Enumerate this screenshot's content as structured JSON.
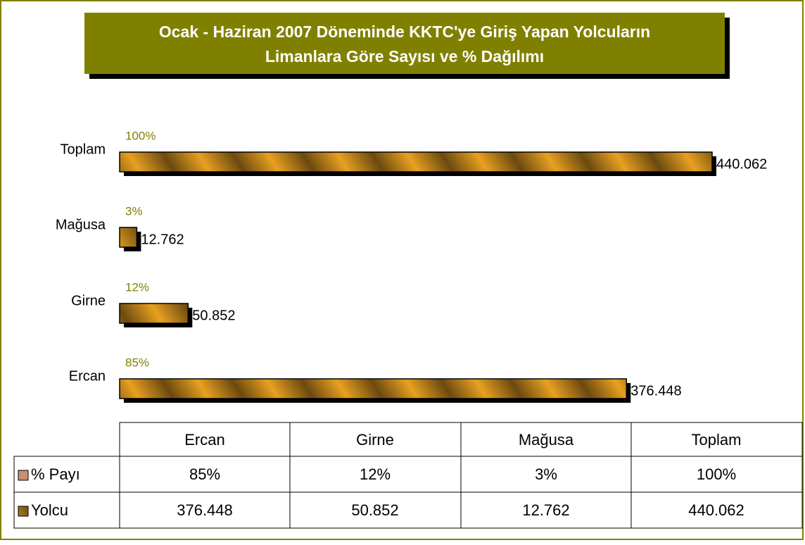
{
  "chart_data": {
    "type": "bar",
    "orientation": "horizontal",
    "title": "Ocak - Haziran 2007 Döneminde KKTC'ye Giriş Yapan Yolcuların",
    "subtitle": "Limanlara Göre Sayısı ve % Dağılımı",
    "categories": [
      "Ercan",
      "Girne",
      "Mağusa",
      "Toplam"
    ],
    "series": [
      {
        "name": "% Payı",
        "color": "#c89070",
        "values": [
          85,
          12,
          3,
          100
        ],
        "value_labels": [
          "85%",
          "12%",
          "3%",
          "100%"
        ]
      },
      {
        "name": "Yolcu",
        "color": "#e8a020",
        "values": [
          376448,
          50852,
          12762,
          440062
        ],
        "value_labels": [
          "376.448",
          "50.852",
          "12.762",
          "440.062"
        ]
      }
    ],
    "xlim": [
      0,
      450000
    ]
  }
}
